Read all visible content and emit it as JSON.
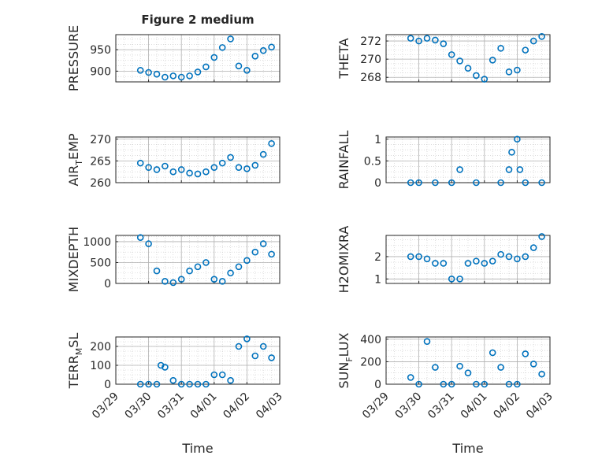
{
  "figure": {
    "title": "Figure 2 medium",
    "xlabel": "Time",
    "marker_color": "#0072BD",
    "background": "#ffffff",
    "x_tick_labels": [
      "03/29",
      "03/30",
      "03/31",
      "04/01",
      "04/02",
      "04/03"
    ]
  },
  "chart_data": [
    {
      "type": "scatter",
      "ylabel": "PRESSURE",
      "ylabel_sub": "",
      "title": "Figure 2 medium",
      "xlabel": "",
      "x_tick_labels": [
        "03/29",
        "03/30",
        "03/31",
        "04/01",
        "04/02",
        "04/03"
      ],
      "xlim": [
        "03/29",
        "04/03"
      ],
      "ylim": [
        875,
        985
      ],
      "yticks": [
        900,
        950
      ],
      "ytick_labels": [
        "900",
        "950"
      ],
      "grid": true,
      "x": [
        "03/29 18:00",
        "03/30 00:00",
        "03/30 06:00",
        "03/30 12:00",
        "03/30 18:00",
        "03/31 00:00",
        "03/31 06:00",
        "03/31 12:00",
        "03/31 18:00",
        "04/01 00:00",
        "04/01 06:00",
        "04/01 12:00",
        "04/01 18:00",
        "04/02 00:00",
        "04/02 06:00",
        "04/02 12:00",
        "04/02 18:00"
      ],
      "y": [
        902,
        897,
        893,
        886,
        889,
        886,
        889,
        898,
        910,
        932,
        955,
        975,
        912,
        902,
        935,
        948,
        956
      ]
    },
    {
      "type": "scatter",
      "ylabel": "THETA",
      "ylabel_sub": "",
      "title": "",
      "xlabel": "",
      "x_tick_labels": [
        "03/29",
        "03/30",
        "03/31",
        "04/01",
        "04/02",
        "04/03"
      ],
      "xlim": [
        "03/29",
        "04/03"
      ],
      "ylim": [
        267.5,
        272.7
      ],
      "yticks": [
        268,
        270,
        272
      ],
      "ytick_labels": [
        "268",
        "270",
        "272"
      ],
      "grid": true,
      "x": [
        "03/29 18:00",
        "03/30 00:00",
        "03/30 06:00",
        "03/30 12:00",
        "03/30 18:00",
        "03/31 00:00",
        "03/31 06:00",
        "03/31 12:00",
        "03/31 18:00",
        "04/01 00:00",
        "04/01 06:00",
        "04/01 12:00",
        "04/01 18:00",
        "04/02 00:00",
        "04/02 06:00",
        "04/02 12:00",
        "04/02 18:00"
      ],
      "y": [
        272.3,
        272.0,
        272.3,
        272.1,
        271.7,
        270.5,
        269.8,
        269.0,
        268.2,
        267.8,
        269.9,
        271.2,
        268.6,
        268.8,
        271.0,
        272.0,
        272.5
      ]
    },
    {
      "type": "scatter",
      "ylabel": "AIR",
      "ylabel_sub": "T",
      "ylabel_suffix": "EMP",
      "title": "",
      "xlabel": "",
      "x_tick_labels": [
        "03/29",
        "03/30",
        "03/31",
        "04/01",
        "04/02",
        "04/03"
      ],
      "xlim": [
        "03/29",
        "04/03"
      ],
      "ylim": [
        260,
        270.5
      ],
      "yticks": [
        260,
        265,
        270
      ],
      "ytick_labels": [
        "260",
        "265",
        "270"
      ],
      "grid": true,
      "x": [
        "03/29 18:00",
        "03/30 00:00",
        "03/30 06:00",
        "03/30 12:00",
        "03/30 18:00",
        "03/31 00:00",
        "03/31 06:00",
        "03/31 12:00",
        "03/31 18:00",
        "04/01 00:00",
        "04/01 06:00",
        "04/01 12:00",
        "04/01 18:00",
        "04/02 00:00",
        "04/02 06:00",
        "04/02 12:00",
        "04/02 18:00"
      ],
      "y": [
        264.5,
        263.5,
        263.0,
        263.8,
        262.5,
        263.0,
        262.2,
        262.0,
        262.5,
        263.5,
        264.5,
        265.8,
        263.5,
        263.2,
        264.0,
        266.5,
        269.0
      ]
    },
    {
      "type": "scatter",
      "ylabel": "RAINFALL",
      "ylabel_sub": "",
      "title": "",
      "xlabel": "",
      "x_tick_labels": [
        "03/29",
        "03/30",
        "03/31",
        "04/01",
        "04/02",
        "04/03"
      ],
      "xlim": [
        "03/29",
        "04/03"
      ],
      "ylim": [
        0,
        1.05
      ],
      "yticks": [
        0,
        0.5,
        1
      ],
      "ytick_labels": [
        "0",
        "0.5",
        "1"
      ],
      "grid": true,
      "x": [
        "03/29 18:00",
        "03/30 00:00",
        "03/30 12:00",
        "03/31 00:00",
        "03/31 06:00",
        "03/31 18:00",
        "04/01 12:00",
        "04/01 18:00",
        "04/01 20:00",
        "04/02 00:00",
        "04/02 02:00",
        "04/02 06:00",
        "04/02 18:00"
      ],
      "y": [
        0,
        0,
        0,
        0,
        0.3,
        0,
        0,
        0.3,
        0.7,
        1.0,
        0.3,
        0,
        0
      ]
    },
    {
      "type": "scatter",
      "ylabel": "MIXDEPTH",
      "ylabel_sub": "",
      "title": "",
      "xlabel": "",
      "x_tick_labels": [
        "03/29",
        "03/30",
        "03/31",
        "04/01",
        "04/02",
        "04/03"
      ],
      "xlim": [
        "03/29",
        "04/03"
      ],
      "ylim": [
        0,
        1150
      ],
      "yticks": [
        0,
        500,
        1000
      ],
      "ytick_labels": [
        "0",
        "500",
        "1000"
      ],
      "grid": true,
      "x": [
        "03/29 18:00",
        "03/30 00:00",
        "03/30 06:00",
        "03/30 12:00",
        "03/30 18:00",
        "03/31 00:00",
        "03/31 06:00",
        "03/31 12:00",
        "03/31 18:00",
        "04/01 00:00",
        "04/01 06:00",
        "04/01 12:00",
        "04/01 18:00",
        "04/02 00:00",
        "04/02 06:00",
        "04/02 12:00",
        "04/02 18:00"
      ],
      "y": [
        1100,
        950,
        300,
        50,
        20,
        100,
        300,
        400,
        500,
        100,
        50,
        250,
        400,
        550,
        750,
        950,
        700
      ]
    },
    {
      "type": "scatter",
      "ylabel": "H2OMIXRA",
      "ylabel_sub": "",
      "title": "",
      "xlabel": "",
      "x_tick_labels": [
        "03/29",
        "03/30",
        "03/31",
        "04/01",
        "04/02",
        "04/03"
      ],
      "xlim": [
        "03/29",
        "04/03"
      ],
      "ylim": [
        0.8,
        2.95
      ],
      "yticks": [
        1,
        2
      ],
      "ytick_labels": [
        "1",
        "2"
      ],
      "grid": true,
      "x": [
        "03/29 18:00",
        "03/30 00:00",
        "03/30 06:00",
        "03/30 12:00",
        "03/30 18:00",
        "03/31 00:00",
        "03/31 06:00",
        "03/31 12:00",
        "03/31 18:00",
        "04/01 00:00",
        "04/01 06:00",
        "04/01 12:00",
        "04/01 18:00",
        "04/02 00:00",
        "04/02 06:00",
        "04/02 12:00",
        "04/02 18:00"
      ],
      "y": [
        2.0,
        2.0,
        1.9,
        1.7,
        1.7,
        1.0,
        1.0,
        1.7,
        1.8,
        1.7,
        1.8,
        2.1,
        2.0,
        1.9,
        2.0,
        2.4,
        2.9
      ]
    },
    {
      "type": "scatter",
      "ylabel": "TERR",
      "ylabel_sub": "M",
      "ylabel_suffix": "SL",
      "title": "",
      "xlabel": "Time",
      "x_tick_labels": [
        "03/29",
        "03/30",
        "03/31",
        "04/01",
        "04/02",
        "04/03"
      ],
      "xlim": [
        "03/29",
        "04/03"
      ],
      "ylim": [
        0,
        250
      ],
      "yticks": [
        0,
        100,
        200
      ],
      "ytick_labels": [
        "0",
        "100",
        "200"
      ],
      "grid": true,
      "x": [
        "03/29 18:00",
        "03/30 00:00",
        "03/30 06:00",
        "03/30 09:00",
        "03/30 12:00",
        "03/30 18:00",
        "03/31 00:00",
        "03/31 06:00",
        "03/31 12:00",
        "03/31 18:00",
        "04/01 00:00",
        "04/01 06:00",
        "04/01 12:00",
        "04/01 18:00",
        "04/02 00:00",
        "04/02 06:00",
        "04/02 12:00",
        "04/02 18:00"
      ],
      "y": [
        0,
        0,
        0,
        100,
        90,
        20,
        0,
        0,
        0,
        0,
        50,
        50,
        20,
        200,
        240,
        150,
        200,
        140
      ]
    },
    {
      "type": "scatter",
      "ylabel": "SUN",
      "ylabel_sub": "F",
      "ylabel_suffix": "LUX",
      "title": "",
      "xlabel": "Time",
      "x_tick_labels": [
        "03/29",
        "03/30",
        "03/31",
        "04/01",
        "04/02",
        "04/03"
      ],
      "xlim": [
        "03/29",
        "04/03"
      ],
      "ylim": [
        0,
        420
      ],
      "yticks": [
        0,
        200,
        400
      ],
      "ytick_labels": [
        "0",
        "200",
        "400"
      ],
      "grid": true,
      "x": [
        "03/29 18:00",
        "03/30 00:00",
        "03/30 06:00",
        "03/30 12:00",
        "03/30 18:00",
        "03/31 00:00",
        "03/31 06:00",
        "03/31 12:00",
        "03/31 18:00",
        "04/01 00:00",
        "04/01 06:00",
        "04/01 12:00",
        "04/01 18:00",
        "04/02 00:00",
        "04/02 06:00",
        "04/02 12:00",
        "04/02 18:00"
      ],
      "y": [
        60,
        0,
        380,
        150,
        0,
        0,
        160,
        100,
        0,
        0,
        280,
        150,
        0,
        0,
        270,
        180,
        90
      ]
    }
  ]
}
